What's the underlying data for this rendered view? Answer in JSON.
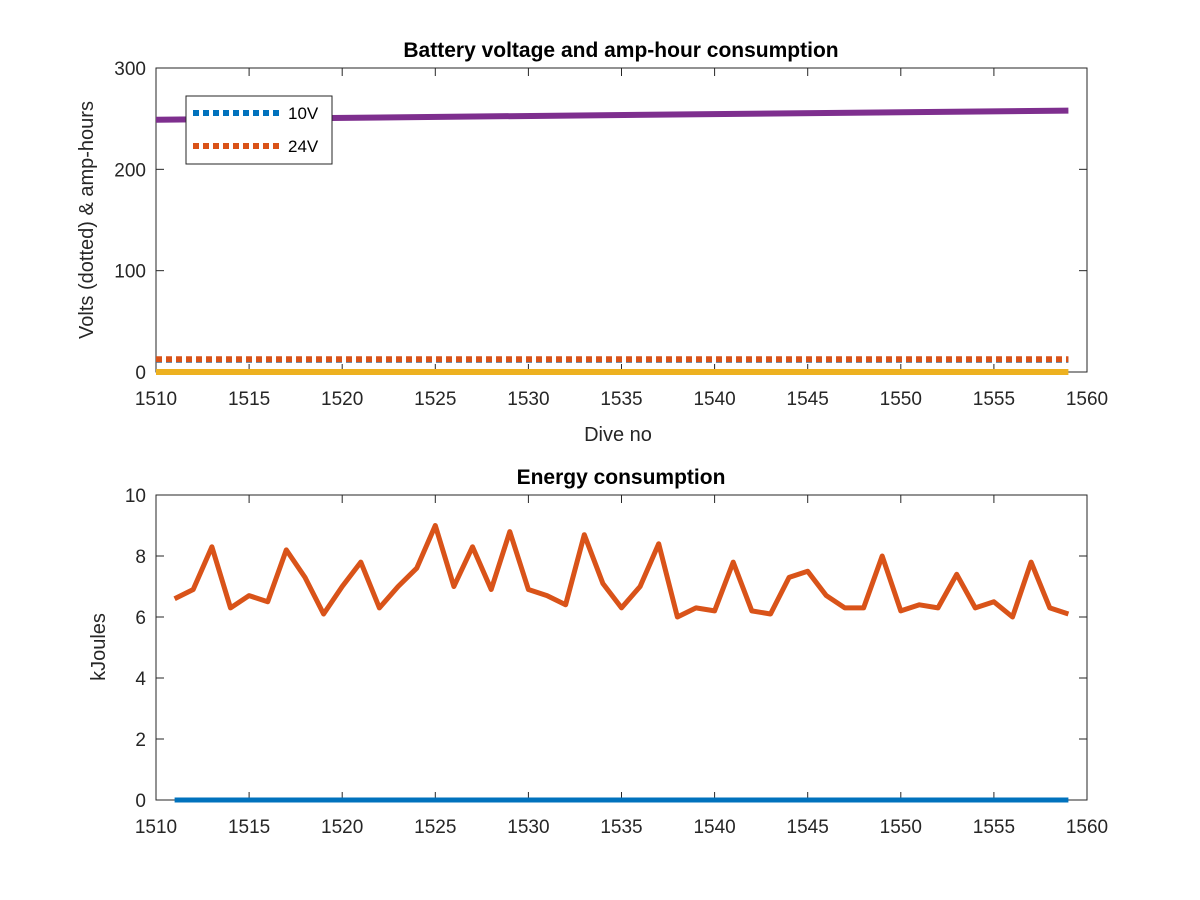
{
  "chart_data": [
    {
      "type": "line",
      "title": "Battery voltage and amp-hour consumption",
      "xlabel": "Dive no",
      "ylabel": "Volts (dotted) & amp-hours",
      "xlim": [
        1510,
        1560
      ],
      "ylim": [
        0,
        300
      ],
      "xticks": [
        1510,
        1515,
        1520,
        1525,
        1530,
        1535,
        1540,
        1545,
        1550,
        1555,
        1560
      ],
      "yticks": [
        0,
        100,
        200,
        300
      ],
      "grid": false,
      "legend_placement": "top-left",
      "series": [
        {
          "name": "10V",
          "style": "dotted",
          "color": "#0072BD",
          "x": [
            1510,
            1559
          ],
          "y": [
            12,
            12
          ]
        },
        {
          "name": "24V",
          "style": "dotted",
          "color": "#D95319",
          "x": [
            1510,
            1559
          ],
          "y": [
            12.5,
            12.5
          ]
        },
        {
          "style": "solid",
          "color": "#EDB120",
          "x": [
            1510,
            1559
          ],
          "y": [
            0,
            0
          ]
        },
        {
          "style": "solid",
          "color": "#7E2F8E",
          "x": [
            1510,
            1559
          ],
          "y": [
            249,
            258
          ]
        }
      ]
    },
    {
      "type": "line",
      "title": "Energy consumption",
      "xlabel": "",
      "ylabel": "kJoules",
      "xlim": [
        1510,
        1560
      ],
      "ylim": [
        0,
        10
      ],
      "xticks": [
        1510,
        1515,
        1520,
        1525,
        1530,
        1535,
        1540,
        1545,
        1550,
        1555,
        1560
      ],
      "yticks": [
        0,
        2,
        4,
        6,
        8,
        10
      ],
      "grid": false,
      "series": [
        {
          "style": "solid",
          "color": "#0072BD",
          "x": [
            1511,
            1559
          ],
          "y": [
            0,
            0
          ]
        },
        {
          "style": "solid",
          "color": "#D95319",
          "x": [
            1511,
            1512,
            1513,
            1514,
            1515,
            1516,
            1517,
            1518,
            1519,
            1520,
            1521,
            1522,
            1523,
            1524,
            1525,
            1526,
            1527,
            1528,
            1529,
            1530,
            1531,
            1532,
            1533,
            1534,
            1535,
            1536,
            1537,
            1538,
            1539,
            1540,
            1541,
            1542,
            1543,
            1544,
            1545,
            1546,
            1547,
            1548,
            1549,
            1550,
            1551,
            1552,
            1553,
            1554,
            1555,
            1556,
            1557,
            1558,
            1559
          ],
          "y": [
            6.6,
            6.9,
            8.3,
            6.3,
            6.7,
            6.5,
            8.2,
            7.3,
            6.1,
            7.0,
            7.8,
            6.3,
            7.0,
            7.6,
            9.0,
            7.0,
            8.3,
            6.9,
            8.8,
            6.9,
            6.7,
            6.4,
            8.7,
            7.1,
            6.3,
            7.0,
            8.4,
            6.0,
            6.3,
            6.2,
            7.8,
            6.2,
            6.1,
            7.3,
            7.5,
            6.7,
            6.3,
            6.3,
            8.0,
            6.2,
            6.4,
            6.3,
            7.4,
            6.3,
            6.5,
            6.0,
            7.8,
            6.3,
            6.1
          ]
        }
      ]
    }
  ]
}
